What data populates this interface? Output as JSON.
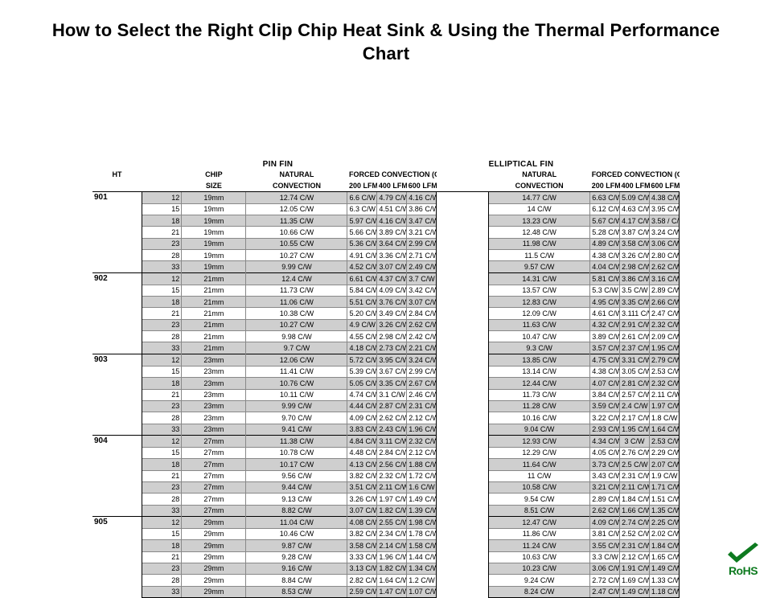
{
  "title": "How to Select the Right Clip Chip Heat Sink & Using the Thermal Performance Chart",
  "rohs_label": "RoHS",
  "colors": {
    "page_bg": "#ffffff",
    "text": "#000000",
    "grid_outer": "#000000",
    "grid_inner": "#888888",
    "row_shade": "#cfcfcf",
    "rohs_green": "#0d7a1f"
  },
  "table": {
    "super_headers": {
      "pin": "PIN FIN",
      "elliptical": "ELLIPTICAL FIN"
    },
    "columns": {
      "ht": "HT",
      "chip": "CHIP",
      "chip2": "SIZE",
      "natural": "NATURAL",
      "natural2": "CONVECTION",
      "forced_span": "FORCED CONVECTION (C/W)",
      "lfm200": "200 LFM",
      "lfm400": "400 LFM",
      "lfm600": "600 LFM"
    },
    "unit": "C/W",
    "sections": [
      {
        "ht": "901",
        "rows": [
          {
            "g": "12",
            "chip": "19mm",
            "p": {
              "nat": "12.74",
              "l2": "6.6",
              "l4": "4.79",
              "l6": "4.16"
            },
            "e": {
              "nat": "14.77",
              "l2": "6.63",
              "l4": "5.09",
              "l6": "4.38"
            }
          },
          {
            "g": "15",
            "chip": "19mm",
            "p": {
              "nat": "12.05",
              "l2": "6.3",
              "l4": "4.51",
              "l6": "3.86"
            },
            "e": {
              "nat": "14",
              "l2": "6.12",
              "l4": "4.63",
              "l6": "3.95"
            }
          },
          {
            "g": "18",
            "chip": "19mm",
            "p": {
              "nat": "11.35",
              "l2": "5.97",
              "l4": "4.16",
              "l6": "3.47"
            },
            "e": {
              "nat": "13.23",
              "l2": "5.67",
              "l4": "4.17",
              "l6": "3.58 /"
            }
          },
          {
            "g": "21",
            "chip": "19mm",
            "p": {
              "nat": "10.66",
              "l2": "5.66",
              "l4": "3.89",
              "l6": "3.21"
            },
            "e": {
              "nat": "12.48",
              "l2": "5.28",
              "l4": "3.87",
              "l6": "3.24"
            }
          },
          {
            "g": "23",
            "chip": "19mm",
            "p": {
              "nat": "10.55",
              "l2": "5.36",
              "l4": "3.64",
              "l6": "2.99"
            },
            "e": {
              "nat": "11.98",
              "l2": "4.89",
              "l4": "3.58",
              "l6": "3.06"
            }
          },
          {
            "g": "28",
            "chip": "19mm",
            "p": {
              "nat": "10.27",
              "l2": "4.91",
              "l4": "3.36",
              "l6": "2.71"
            },
            "e": {
              "nat": "11.5",
              "l2": "4.38",
              "l4": "3.26",
              "l6": "2.80"
            }
          },
          {
            "g": "33",
            "chip": "19mm",
            "p": {
              "nat": "9.99",
              "l2": "4.52",
              "l4": "3.07",
              "l6": "2.49"
            },
            "e": {
              "nat": "9.57",
              "l2": "4.04",
              "l4": "2.98",
              "l6": "2.62"
            }
          }
        ]
      },
      {
        "ht": "902",
        "rows": [
          {
            "g": "12",
            "chip": "21mm",
            "p": {
              "nat": "12.4",
              "l2": "6.61",
              "l4": "4.37",
              "l6": "3.7"
            },
            "e": {
              "nat": "14.31",
              "l2": "5.81",
              "l4": "3.86",
              "l6": "3.16"
            }
          },
          {
            "g": "15",
            "chip": "21mm",
            "p": {
              "nat": "11.73",
              "l2": "5.84",
              "l4": "4.09",
              "l6": "3.42"
            },
            "e": {
              "nat": "13.57",
              "l2": "5.3",
              "l4": "3.5",
              "l6": "2.89"
            }
          },
          {
            "g": "18",
            "chip": "21mm",
            "p": {
              "nat": "11.06",
              "l2": "5.51",
              "l4": "3.76",
              "l6": "3.07"
            },
            "e": {
              "nat": "12.83",
              "l2": "4.95",
              "l4": "3.35",
              "l6": "2.66"
            }
          },
          {
            "g": "21",
            "chip": "21mm",
            "p": {
              "nat": "10.38",
              "l2": "5.20",
              "l4": "3.49",
              "l6": "2.84"
            },
            "e": {
              "nat": "12.09",
              "l2": "4.61",
              "l4": "3.111",
              "l6": "2.47"
            }
          },
          {
            "g": "23",
            "chip": "21mm",
            "p": {
              "nat": "10.27",
              "l2": "4.9",
              "l4": "3.26",
              "l6": "2.62"
            },
            "e": {
              "nat": "11.63",
              "l2": "4.32",
              "l4": "2.91",
              "l6": "2.32"
            }
          },
          {
            "g": "28",
            "chip": "21mm",
            "p": {
              "nat": "9.98",
              "l2": "4.55",
              "l4": "2.98",
              "l6": "2.42"
            },
            "e": {
              "nat": "10.47",
              "l2": "3.89",
              "l4": "2.61",
              "l6": "2.09"
            }
          },
          {
            "g": "33",
            "chip": "21mm",
            "p": {
              "nat": "9.7",
              "l2": "4.18",
              "l4": "2.73",
              "l6": "2.21"
            },
            "e": {
              "nat": "9.3",
              "l2": "3.57",
              "l4": "2.37",
              "l6": "1.95"
            }
          }
        ]
      },
      {
        "ht": "903",
        "rows": [
          {
            "g": "12",
            "chip": "23mm",
            "p": {
              "nat": "12.06",
              "l2": "5.72",
              "l4": "3.95",
              "l6": "3.24"
            },
            "e": {
              "nat": "13.85",
              "l2": "4.75",
              "l4": "3.31",
              "l6": "2.79"
            }
          },
          {
            "g": "15",
            "chip": "23mm",
            "p": {
              "nat": "11.41",
              "l2": "5.39",
              "l4": "3.67",
              "l6": "2.99"
            },
            "e": {
              "nat": "13.14",
              "l2": "4.38",
              "l4": "3.05",
              "l6": "2.53"
            }
          },
          {
            "g": "18",
            "chip": "23mm",
            "p": {
              "nat": "10.76",
              "l2": "5.05",
              "l4": "3.35",
              "l6": "2.67"
            },
            "e": {
              "nat": "12.44",
              "l2": "4.07",
              "l4": "2.81",
              "l6": "2.32"
            }
          },
          {
            "g": "21",
            "chip": "23mm",
            "p": {
              "nat": "10.11",
              "l2": "4.74",
              "l4": "3.1",
              "l6": "2.46"
            },
            "e": {
              "nat": "11.73",
              "l2": "3.84",
              "l4": "2.57",
              "l6": "2.11"
            }
          },
          {
            "g": "23",
            "chip": "23mm",
            "p": {
              "nat": "9.99",
              "l2": "4.44",
              "l4": "2.87",
              "l6": "2.31"
            },
            "e": {
              "nat": "11.28",
              "l2": "3.59",
              "l4": "2.4",
              "l6": "1.97"
            }
          },
          {
            "g": "28",
            "chip": "23mm",
            "p": {
              "nat": "9.70",
              "l2": "4.09",
              "l4": "2.62",
              "l6": "2.12"
            },
            "e": {
              "nat": "10.16",
              "l2": "3.22",
              "l4": "2.17",
              "l6": "1.8"
            }
          },
          {
            "g": "33",
            "chip": "23mm",
            "p": {
              "nat": "9.41",
              "l2": "3.83",
              "l4": "2.43",
              "l6": "1.96"
            },
            "e": {
              "nat": "9.04",
              "l2": "2.93",
              "l4": "1.95",
              "l6": "1.64"
            }
          }
        ]
      },
      {
        "ht": "904",
        "rows": [
          {
            "g": "12",
            "chip": "27mm",
            "p": {
              "nat": "11.38",
              "l2": "4.84",
              "l4": "3.11",
              "l6": "2.32"
            },
            "e": {
              "nat": "12.93",
              "l2": "4.34",
              "l4": "3",
              "l6": "2.53"
            }
          },
          {
            "g": "15",
            "chip": "27mm",
            "p": {
              "nat": "10.78",
              "l2": "4.48",
              "l4": "2.84",
              "l6": "2.12"
            },
            "e": {
              "nat": "12.29",
              "l2": "4.05",
              "l4": "2.76",
              "l6": "2.29"
            }
          },
          {
            "g": "18",
            "chip": "27mm",
            "p": {
              "nat": "10.17",
              "l2": "4.13",
              "l4": "2.56",
              "l6": "1.88"
            },
            "e": {
              "nat": "11.64",
              "l2": "3.73",
              "l4": "2.5",
              "l6": "2.07"
            }
          },
          {
            "g": "21",
            "chip": "27mm",
            "p": {
              "nat": "9.56",
              "l2": "3.82",
              "l4": "2.32",
              "l6": "1.72"
            },
            "e": {
              "nat": "11",
              "l2": "3.43",
              "l4": "2.31",
              "l6": "1.9"
            }
          },
          {
            "g": "23",
            "chip": "27mm",
            "p": {
              "nat": "9.44",
              "l2": "3.51",
              "l4": "2.11",
              "l6": "1.6"
            },
            "e": {
              "nat": "10.58",
              "l2": "3.21",
              "l4": "2.11",
              "l6": "1.71"
            }
          },
          {
            "g": "28",
            "chip": "27mm",
            "p": {
              "nat": "9.13",
              "l2": "3.26",
              "l4": "1.97",
              "l6": "1.49"
            },
            "e": {
              "nat": "9.54",
              "l2": "2.89",
              "l4": "1.84",
              "l6": "1.51"
            }
          },
          {
            "g": "33",
            "chip": "27mm",
            "p": {
              "nat": "8.82",
              "l2": "3.07",
              "l4": "1.82",
              "l6": "1.39"
            },
            "e": {
              "nat": "8.51",
              "l2": "2.62",
              "l4": "1.66",
              "l6": "1.35"
            }
          }
        ]
      },
      {
        "ht": "905",
        "rows": [
          {
            "g": "12",
            "chip": "29mm",
            "p": {
              "nat": "11.04",
              "l2": "4.08",
              "l4": "2.55",
              "l6": "1.98"
            },
            "e": {
              "nat": "12.47",
              "l2": "4.09",
              "l4": "2.74",
              "l6": "2.25"
            }
          },
          {
            "g": "15",
            "chip": "29mm",
            "p": {
              "nat": "10.46",
              "l2": "3.82",
              "l4": "2.34",
              "l6": "1.78"
            },
            "e": {
              "nat": "11.86",
              "l2": "3.81",
              "l4": "2.52",
              "l6": "2.02"
            }
          },
          {
            "g": "18",
            "chip": "29mm",
            "p": {
              "nat": "9.87",
              "l2": "3.58",
              "l4": "2.14",
              "l6": "1.58"
            },
            "e": {
              "nat": "11.24",
              "l2": "3.55",
              "l4": "2.31",
              "l6": "1.84"
            }
          },
          {
            "g": "21",
            "chip": "29mm",
            "p": {
              "nat": "9.28",
              "l2": "3.33",
              "l4": "1.96",
              "l6": "1.44"
            },
            "e": {
              "nat": "10.63",
              "l2": "3.3",
              "l4": "2.12",
              "l6": "1.65"
            }
          },
          {
            "g": "23",
            "chip": "29mm",
            "p": {
              "nat": "9.16",
              "l2": "3.13",
              "l4": "1.82",
              "l6": "1.34"
            },
            "e": {
              "nat": "10.23",
              "l2": "3.06",
              "l4": "1.91",
              "l6": "1.49"
            }
          },
          {
            "g": "28",
            "chip": "29mm",
            "p": {
              "nat": "8.84",
              "l2": "2.82",
              "l4": "1.64",
              "l6": "1.2"
            },
            "e": {
              "nat": "9.24",
              "l2": "2.72",
              "l4": "1.69",
              "l6": "1.33"
            }
          },
          {
            "g": "33",
            "chip": "29mm",
            "p": {
              "nat": "8.53",
              "l2": "2.59",
              "l4": "1.47",
              "l6": "1.07"
            },
            "e": {
              "nat": "8.24",
              "l2": "2.47",
              "l4": "1.49",
              "l6": "1.18"
            }
          }
        ]
      }
    ]
  }
}
